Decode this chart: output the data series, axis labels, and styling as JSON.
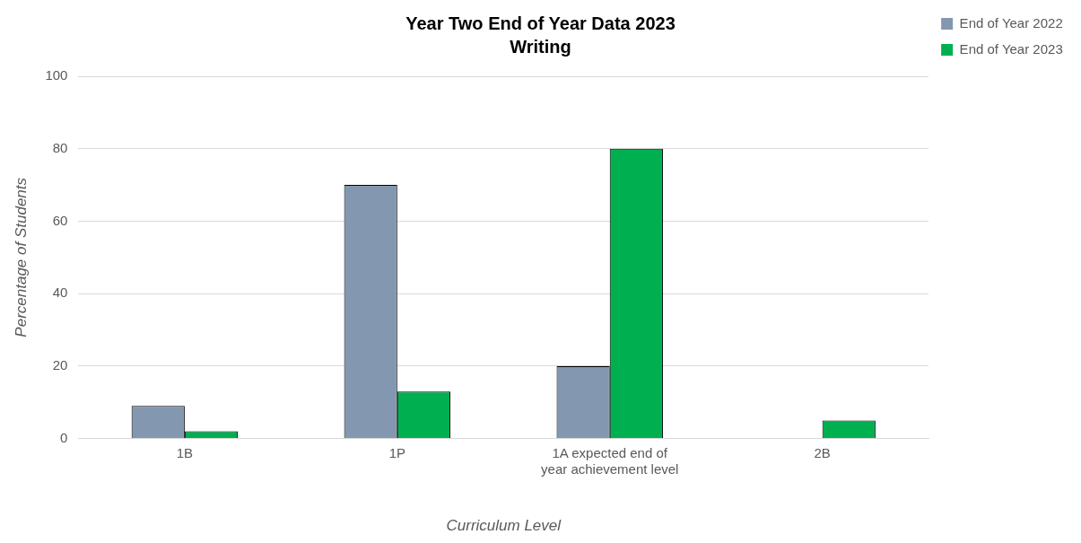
{
  "chart_data": {
    "type": "bar",
    "title": "Year Two End of Year Data 2023",
    "subtitle": "Writing",
    "xlabel": "Curriculum Level",
    "ylabel": "Percentage of Students",
    "categories": [
      "1B",
      "1P",
      "1A expected end of year achievement level",
      "2B"
    ],
    "series": [
      {
        "name": "End of Year 2022",
        "color": "#8497b0",
        "values": [
          9,
          70,
          20,
          0
        ]
      },
      {
        "name": "End of Year 2023",
        "color": "#00b050",
        "values": [
          2,
          13,
          80,
          5
        ]
      }
    ],
    "ylim": [
      0,
      100
    ],
    "yticks": [
      0,
      20,
      40,
      60,
      80,
      100
    ],
    "grid": "y",
    "legend": "top right"
  }
}
